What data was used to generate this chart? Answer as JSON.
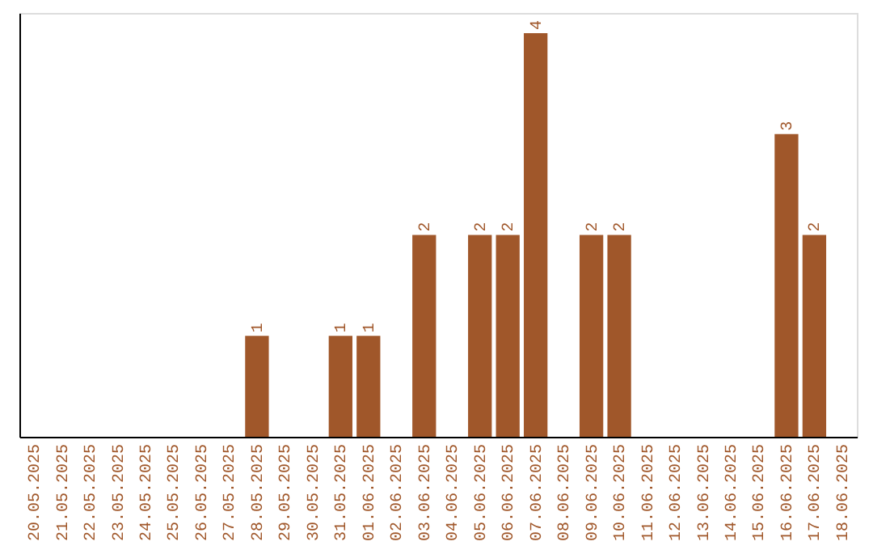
{
  "chart_data": {
    "type": "bar",
    "categories": [
      "20.05.2025",
      "21.05.2025",
      "22.05.2025",
      "23.05.2025",
      "24.05.2025",
      "25.05.2025",
      "26.05.2025",
      "27.05.2025",
      "28.05.2025",
      "29.05.2025",
      "30.05.2025",
      "31.05.2025",
      "01.06.2025",
      "02.06.2025",
      "03.06.2025",
      "04.06.2025",
      "05.06.2025",
      "06.06.2025",
      "07.06.2025",
      "08.06.2025",
      "09.06.2025",
      "10.06.2025",
      "11.06.2025",
      "12.06.2025",
      "13.06.2025",
      "14.06.2025",
      "15.06.2025",
      "16.06.2025",
      "17.06.2025",
      "18.06.2025"
    ],
    "values": [
      0,
      0,
      0,
      0,
      0,
      0,
      0,
      0,
      1,
      0,
      0,
      1,
      1,
      0,
      2,
      0,
      2,
      2,
      4,
      0,
      2,
      2,
      0,
      0,
      0,
      0,
      0,
      3,
      2,
      0
    ],
    "value_labels": [
      null,
      null,
      null,
      null,
      null,
      null,
      null,
      null,
      "1",
      null,
      null,
      "1",
      "1",
      null,
      "2",
      null,
      "2",
      "2",
      "4",
      null,
      "2",
      "2",
      null,
      null,
      null,
      null,
      null,
      "3",
      "2",
      null
    ],
    "color": "#a0572a",
    "ylim": [
      0,
      4.2
    ],
    "grid": false,
    "tick_labels": "x"
  }
}
